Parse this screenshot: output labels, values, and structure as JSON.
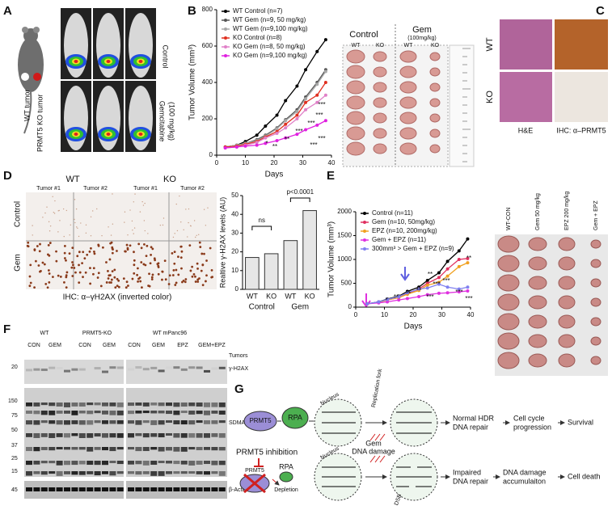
{
  "panels": {
    "A": {
      "letter": "A",
      "mouse_labels": [
        "WT tumor",
        "PRMT5 KO tumor"
      ],
      "row_labels": [
        "Control",
        "Gemcitabine",
        "(100 mg/kg)"
      ]
    },
    "B": {
      "letter": "B",
      "photo_header": [
        "Control",
        "Gem",
        "(100mg/kg)"
      ],
      "photo_columns": [
        "WT",
        "KO",
        "WT",
        "KO"
      ]
    },
    "C": {
      "letter": "C",
      "rows": [
        "WT",
        "KO"
      ],
      "columns": [
        "H&E",
        "IHC: α–PRMT5"
      ]
    },
    "D": {
      "letter": "D",
      "genotypes": [
        "WT",
        "KO"
      ],
      "tumors": [
        "Tumor #1",
        "Tumor #2",
        "Tumor #1",
        "Tumor #2"
      ],
      "rows": [
        "Control",
        "Gem"
      ],
      "caption": "IHC: α–γH2AX (inverted color)"
    },
    "E": {
      "letter": "E",
      "photo_columns": [
        "WT-CON",
        "Gem 50 mg/kg",
        "EPZ 200 mg/kg",
        "Gem + EPZ"
      ]
    },
    "F": {
      "letter": "F",
      "groups": [
        "WT",
        "PRMT5-KO",
        "WT mPanc96"
      ],
      "conditions": [
        "CON",
        "GEM",
        "CON",
        "GEM",
        "CON",
        "GEM",
        "EPZ",
        "GEM+EPZ"
      ],
      "tumors": "Tumors",
      "markers": [
        "20",
        "150",
        "75",
        "50",
        "37",
        "25",
        "15",
        "45"
      ],
      "bands": [
        "γ-H2AX",
        "SDMA",
        "β-Actin"
      ]
    },
    "G": {
      "letter": "G",
      "prmt5": "PRMT5",
      "rpa": "RPA",
      "nucleus": "Nucleus",
      "fork": "Replication fork",
      "damage": [
        "Gem",
        "DNA damage"
      ],
      "normal_repair": [
        "Normal HDR",
        "DNA repair"
      ],
      "progression": [
        "Cell cycle",
        "progression"
      ],
      "survival": "Survival",
      "inhibition": "PRMT5 inhibition",
      "prmt5_2": "PRMT5",
      "rpa_2": "RPA",
      "depletion": "Depletion",
      "nucleus_2": "Nucleus",
      "dsb": "DSB",
      "impaired": [
        "Impaired",
        "DNA repair"
      ],
      "accumulation": [
        "DNA damage",
        "accumulaiton"
      ],
      "death": "Cell death"
    }
  },
  "chart_data": [
    {
      "type": "line",
      "ylabel": "Tumor Volume (mm³)",
      "xlabel": "Days",
      "legend": "upper left",
      "x": [
        3,
        7,
        10,
        14,
        17,
        21,
        24,
        28,
        31,
        35,
        38
      ],
      "xlim": [
        0,
        40
      ],
      "xticks": [
        0,
        10,
        20,
        30,
        40
      ],
      "ylim": [
        0,
        800
      ],
      "yticks": [
        0,
        200,
        400,
        600,
        800
      ],
      "series": [
        {
          "name": "WT Control (n=7)",
          "color": "#000000",
          "values": [
            45,
            55,
            75,
            110,
            160,
            220,
            300,
            380,
            470,
            570,
            635
          ]
        },
        {
          "name": "WT Gem (n=9, 50 mg/kg)",
          "color": "#555555",
          "values": [
            45,
            55,
            65,
            85,
            110,
            150,
            195,
            250,
            320,
            400,
            470
          ]
        },
        {
          "name": "WT Gem (n=9,100 mg/kg)",
          "color": "#a8a8a8",
          "values": [
            45,
            55,
            65,
            80,
            105,
            145,
            190,
            240,
            310,
            390,
            460
          ]
        },
        {
          "name": "KO Control (n=8)",
          "color": "#e03020",
          "values": [
            45,
            50,
            60,
            75,
            100,
            130,
            170,
            220,
            290,
            330,
            400
          ]
        },
        {
          "name": "KO Gem (n=8, 50 mg/kg)",
          "color": "#e080c8",
          "values": [
            40,
            45,
            55,
            70,
            95,
            120,
            150,
            200,
            250,
            290,
            330
          ]
        },
        {
          "name": "KO Gem (n=9,100 mg/kg)",
          "color": "#e020e0",
          "values": [
            40,
            45,
            50,
            55,
            65,
            80,
            95,
            115,
            140,
            165,
            190
          ]
        }
      ],
      "annotations": [
        "*",
        "**",
        "**",
        "***",
        "***",
        "***",
        "***",
        "***",
        "***"
      ]
    },
    {
      "type": "bar",
      "ylabel": "Realtive γ-H2AX levels (AU)",
      "categories": [
        "WT",
        "KO",
        "WT",
        "KO"
      ],
      "groups": [
        "Control",
        "Gem"
      ],
      "values": [
        17,
        19,
        26,
        42
      ],
      "color": "#e6e6e6",
      "ylim": [
        0,
        50
      ],
      "yticks": [
        0,
        10,
        20,
        30,
        40,
        50
      ],
      "annotations": [
        "ns",
        "p<0.0001"
      ]
    },
    {
      "type": "line",
      "ylabel": "Tumor Volume (mm³)",
      "xlabel": "Days",
      "legend": "upper left",
      "x": [
        4,
        8,
        11,
        15,
        18,
        22,
        25,
        29,
        32,
        36,
        39
      ],
      "xlim": [
        0,
        40
      ],
      "xticks": [
        0,
        10,
        20,
        30,
        40
      ],
      "ylim": [
        0,
        2000
      ],
      "yticks": [
        0,
        500,
        1000,
        1500,
        2000
      ],
      "series": [
        {
          "name": "Control (n=11)",
          "color": "#000000",
          "values": [
            70,
            110,
            170,
            230,
            330,
            420,
            560,
            720,
            960,
            1180,
            1430
          ]
        },
        {
          "name": "Gem (n=10, 50mg/kg)",
          "color": "#e03060",
          "values": [
            70,
            100,
            150,
            200,
            280,
            380,
            500,
            620,
            800,
            1000,
            1020
          ]
        },
        {
          "name": "EPZ (n=10, 200mg/kg)",
          "color": "#f0a020",
          "values": [
            70,
            100,
            150,
            200,
            270,
            350,
            460,
            520,
            650,
            850,
            930
          ]
        },
        {
          "name": "Gem + EPZ (n=11)",
          "color": "#e030e0",
          "values": [
            70,
            90,
            110,
            150,
            180,
            220,
            260,
            290,
            300,
            320,
            340
          ]
        },
        {
          "name": "300mm³ > Gem + EPZ (n=9)",
          "color": "#8080f0",
          "values": [
            70,
            110,
            160,
            220,
            300,
            380,
            400,
            480,
            420,
            380,
            420
          ]
        }
      ],
      "annotations": [
        "*",
        "**",
        "**",
        "**",
        "***",
        "***",
        "***",
        "**",
        "***",
        "***",
        "**"
      ]
    }
  ]
}
